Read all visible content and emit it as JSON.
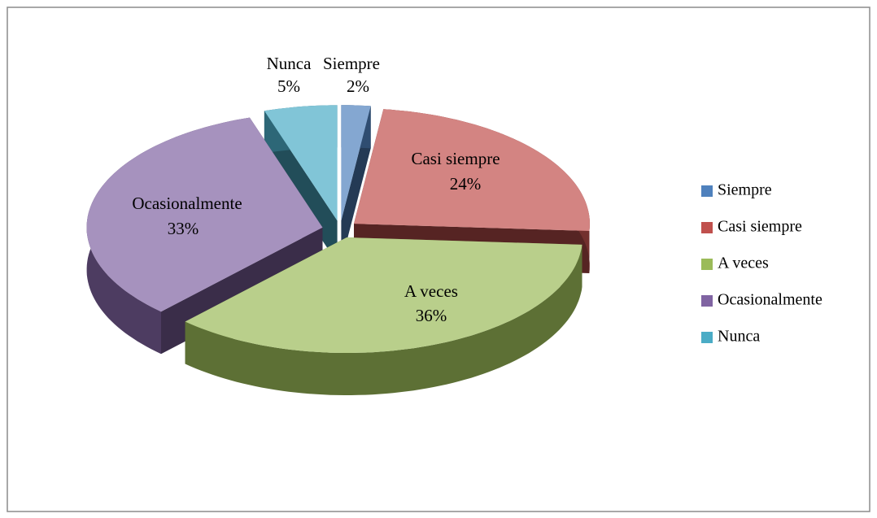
{
  "chart_data": {
    "type": "pie",
    "categories": [
      "Siempre",
      "Casi siempre",
      "A veces",
      "Ocasionalmente",
      "Nunca"
    ],
    "values": [
      2,
      24,
      36,
      33,
      5
    ],
    "value_labels": [
      "2%",
      "24%",
      "36%",
      "33%",
      "5%"
    ],
    "colors": [
      "#4f81bd",
      "#c0504d",
      "#9bbb59",
      "#8064a2",
      "#4bacc6"
    ],
    "legend": "right"
  }
}
